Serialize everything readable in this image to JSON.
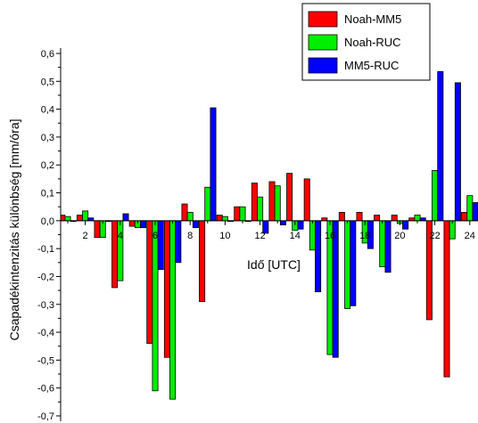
{
  "chart_data": {
    "type": "bar",
    "title": "",
    "xlabel": "Idő [UTC]",
    "ylabel": "Csapadékintenzitás különbség [mm/óra]",
    "ylim": [
      -0.7,
      0.6
    ],
    "xlim": [
      0.5,
      24.5
    ],
    "yticks": [
      "0,6",
      "0,5",
      "0,4",
      "0,3",
      "0,2",
      "0,1",
      "0,0",
      "-0,1",
      "-0,2",
      "-0,3",
      "-0,4",
      "-0,5",
      "-0,6",
      "-0,7"
    ],
    "xticks": [
      "2",
      "4",
      "6",
      "8",
      "10",
      "12",
      "14",
      "16",
      "18",
      "20",
      "22",
      "24"
    ],
    "categories": [
      1,
      2,
      3,
      4,
      5,
      6,
      7,
      8,
      9,
      10,
      11,
      12,
      13,
      14,
      15,
      16,
      17,
      18,
      19,
      20,
      21,
      22,
      23,
      24
    ],
    "legend_position": "top-right",
    "grid": false,
    "series": [
      {
        "name": "Noah-MM5",
        "color": "#ff0000",
        "values": [
          0.02,
          0.02,
          -0.06,
          -0.24,
          -0.02,
          -0.44,
          -0.49,
          0.06,
          -0.29,
          0.02,
          0.05,
          0.135,
          0.14,
          0.17,
          0.15,
          0.01,
          0.03,
          0.03,
          0.02,
          0.02,
          0.01,
          -0.355,
          -0.56,
          0.03
        ]
      },
      {
        "name": "Noah-RUC",
        "color": "#00ee00",
        "values": [
          0.015,
          0.035,
          -0.06,
          -0.215,
          -0.025,
          -0.61,
          -0.64,
          0.03,
          0.12,
          0.015,
          0.05,
          0.085,
          0.125,
          -0.035,
          -0.105,
          -0.48,
          -0.315,
          -0.08,
          -0.165,
          -0.01,
          0.02,
          0.18,
          -0.065,
          0.09
        ]
      },
      {
        "name": "MM5-RUC",
        "color": "#0000ff",
        "values": [
          0.0,
          0.01,
          0.0,
          0.025,
          -0.025,
          -0.175,
          -0.15,
          -0.025,
          0.405,
          0.0,
          0.0,
          -0.045,
          -0.015,
          -0.03,
          -0.255,
          -0.49,
          -0.305,
          -0.1,
          -0.185,
          -0.03,
          0.01,
          0.535,
          0.495,
          0.065
        ]
      }
    ]
  }
}
